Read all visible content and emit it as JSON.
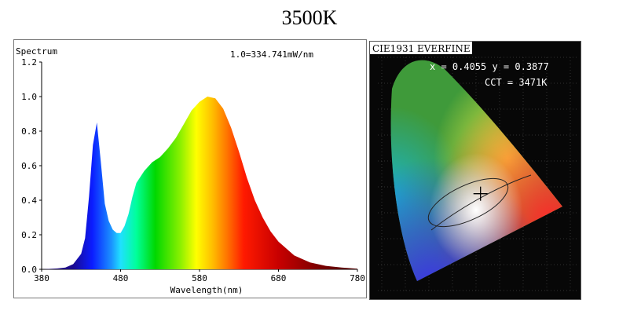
{
  "title": "3500K",
  "chart_data": [
    {
      "type": "area",
      "subtitle": "1.0=334.741mW/nm",
      "ylabel": "Spectrum",
      "xlabel": "Wavelength(nm)",
      "xlim": [
        380,
        780
      ],
      "ylim": [
        0,
        1.2
      ],
      "x_ticks": [
        "380",
        "480",
        "580",
        "680",
        "780"
      ],
      "y_ticks": [
        "0.0",
        "0.2",
        "0.4",
        "0.6",
        "0.8",
        "1.0",
        "1.2"
      ],
      "grid": false,
      "series": [
        {
          "x": [
            380,
            400,
            410,
            420,
            430,
            435,
            440,
            445,
            450,
            455,
            460,
            465,
            470,
            475,
            480,
            485,
            490,
            495,
            500,
            510,
            520,
            530,
            540,
            550,
            560,
            570,
            580,
            590,
            600,
            610,
            620,
            630,
            640,
            650,
            660,
            670,
            680,
            700,
            720,
            740,
            760,
            780
          ],
          "values": [
            0.0,
            0.005,
            0.01,
            0.03,
            0.09,
            0.18,
            0.42,
            0.72,
            0.85,
            0.62,
            0.38,
            0.28,
            0.23,
            0.21,
            0.21,
            0.25,
            0.32,
            0.42,
            0.5,
            0.57,
            0.62,
            0.65,
            0.7,
            0.76,
            0.84,
            0.92,
            0.97,
            1.0,
            0.99,
            0.93,
            0.82,
            0.68,
            0.53,
            0.4,
            0.3,
            0.22,
            0.16,
            0.08,
            0.04,
            0.02,
            0.01,
            0.003
          ]
        }
      ]
    },
    {
      "type": "scatter",
      "title": "CIE1931 EVERFINE",
      "annotation_xy": "x = 0.4055 y = 0.3877",
      "annotation_cct": "CCT = 3471K",
      "series": [
        {
          "x": [
            0.4055
          ],
          "values": [
            0.3877
          ]
        }
      ]
    }
  ]
}
